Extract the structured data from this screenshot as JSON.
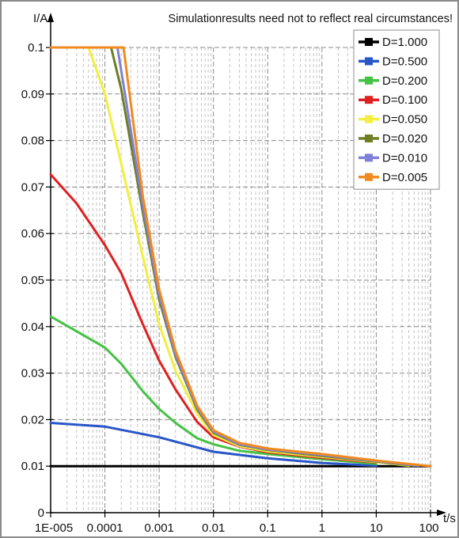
{
  "chart_data": {
    "type": "line",
    "title": "",
    "note": "Simulationresults need not to reflect real circumstances!",
    "ylabel": "I/A",
    "xlabel": "t/s",
    "x_scale": "log",
    "xlim": [
      1e-05,
      100
    ],
    "ylim": [
      0,
      0.1
    ],
    "x_ticks": [
      {
        "value": 1e-05,
        "label": "1E-005"
      },
      {
        "value": 0.0001,
        "label": "0.0001"
      },
      {
        "value": 0.001,
        "label": "0.001"
      },
      {
        "value": 0.01,
        "label": "0.01"
      },
      {
        "value": 0.1,
        "label": "0.1"
      },
      {
        "value": 1,
        "label": "1"
      },
      {
        "value": 10,
        "label": "10"
      },
      {
        "value": 100,
        "label": "100"
      }
    ],
    "y_ticks": [
      {
        "value": 0,
        "label": "0"
      },
      {
        "value": 0.01,
        "label": "0.01"
      },
      {
        "value": 0.02,
        "label": "0.02"
      },
      {
        "value": 0.03,
        "label": "0.03"
      },
      {
        "value": 0.04,
        "label": "0.04"
      },
      {
        "value": 0.05,
        "label": "0.05"
      },
      {
        "value": 0.06,
        "label": "0.06"
      },
      {
        "value": 0.07,
        "label": "0.07"
      },
      {
        "value": 0.08,
        "label": "0.08"
      },
      {
        "value": 0.09,
        "label": "0.09"
      },
      {
        "value": 0.1,
        "label": "0.1"
      }
    ],
    "grid": true,
    "legend_position": "top-right",
    "series": [
      {
        "name": "D=1.000",
        "color": "#000000",
        "x": [
          1e-05,
          100
        ],
        "y": [
          0.01,
          0.01
        ]
      },
      {
        "name": "D=0.500",
        "color": "#2855c8",
        "x": [
          1e-05,
          0.0001,
          0.001,
          0.01,
          0.1,
          1,
          10
        ],
        "y": [
          0.0193,
          0.0185,
          0.0162,
          0.0131,
          0.0117,
          0.0107,
          0.0101
        ]
      },
      {
        "name": "D=0.200",
        "color": "#44c244",
        "x": [
          1e-05,
          0.0001,
          0.0002,
          0.0005,
          0.001,
          0.002,
          0.005,
          0.01,
          0.03,
          0.1,
          1,
          10
        ],
        "y": [
          0.0422,
          0.0355,
          0.032,
          0.0261,
          0.0223,
          0.0193,
          0.016,
          0.0147,
          0.0133,
          0.0126,
          0.0115,
          0.0105
        ]
      },
      {
        "name": "D=0.100",
        "color": "#e02020",
        "x": [
          1e-05,
          3e-05,
          0.0001,
          0.0002,
          0.0005,
          0.001,
          0.002,
          0.005,
          0.01,
          0.03,
          0.1,
          1,
          10
        ],
        "y": [
          0.0727,
          0.0665,
          0.0575,
          0.0515,
          0.0405,
          0.0327,
          0.0265,
          0.0195,
          0.0162,
          0.0142,
          0.013,
          0.0118,
          0.0108
        ]
      },
      {
        "name": "D=0.050",
        "color": "#f2ee40",
        "x": [
          1e-05,
          5e-05,
          0.0001,
          0.0002,
          0.0005,
          0.001,
          0.002,
          0.005,
          0.01,
          0.03,
          0.1,
          1,
          10,
          40
        ],
        "y": [
          0.1,
          0.1,
          0.09,
          0.075,
          0.055,
          0.0405,
          0.0305,
          0.0213,
          0.0167,
          0.0143,
          0.0132,
          0.012,
          0.0109,
          0.0101
        ]
      },
      {
        "name": "D=0.020",
        "color": "#6e7e22",
        "x": [
          1e-05,
          0.00013,
          0.0002,
          0.0005,
          0.001,
          0.002,
          0.005,
          0.01,
          0.03,
          0.1,
          1,
          10,
          50
        ],
        "y": [
          0.1,
          0.1,
          0.091,
          0.0645,
          0.0458,
          0.0335,
          0.0222,
          0.0172,
          0.0146,
          0.0135,
          0.0122,
          0.011,
          0.0101
        ]
      },
      {
        "name": "D=0.010",
        "color": "#8080d8",
        "x": [
          1e-05,
          0.00017,
          0.0002,
          0.0005,
          0.001,
          0.002,
          0.005,
          0.01,
          0.03,
          0.1,
          1,
          10,
          60
        ],
        "y": [
          0.1,
          0.1,
          0.095,
          0.066,
          0.0468,
          0.034,
          0.0225,
          0.0174,
          0.0147,
          0.0136,
          0.0124,
          0.0111,
          0.0101
        ]
      },
      {
        "name": "D=0.005",
        "color": "#f08a20",
        "x": [
          1e-05,
          0.00022,
          0.0005,
          0.001,
          0.002,
          0.005,
          0.01,
          0.03,
          0.1,
          1,
          10,
          100
        ],
        "y": [
          0.1,
          0.1,
          0.068,
          0.048,
          0.0348,
          0.023,
          0.0177,
          0.015,
          0.0138,
          0.0126,
          0.0112,
          0.01
        ]
      }
    ]
  }
}
